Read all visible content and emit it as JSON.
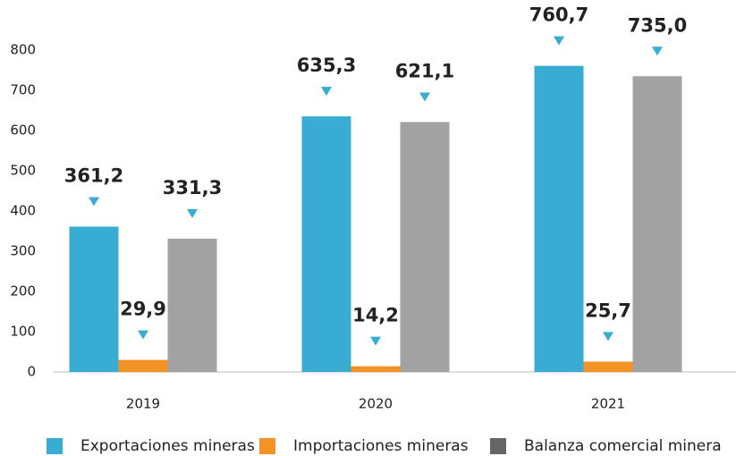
{
  "chart_data": {
    "type": "bar",
    "categories": [
      "2019",
      "2020",
      "2021"
    ],
    "series": [
      {
        "name": "Exportaciones mineras",
        "color": "#38acd3",
        "values": [
          361.2,
          635.3,
          760.7
        ],
        "value_labels": [
          "361,2",
          "635,3",
          "760,7"
        ]
      },
      {
        "name": "Importaciones mineras",
        "color": "#f39325",
        "values": [
          29.9,
          14.2,
          25.7
        ],
        "value_labels": [
          "29,9",
          "14,2",
          "25,7"
        ]
      },
      {
        "name": "Balanza comercial minera",
        "color": "#a2a2a2",
        "values": [
          331.3,
          621.1,
          735.0
        ],
        "value_labels": [
          "331,3",
          "621,1",
          "735,0"
        ]
      }
    ],
    "ylim": [
      0,
      800
    ],
    "yticks": [
      0,
      100,
      200,
      300,
      400,
      500,
      600,
      700,
      800
    ],
    "legend": "bottom"
  }
}
